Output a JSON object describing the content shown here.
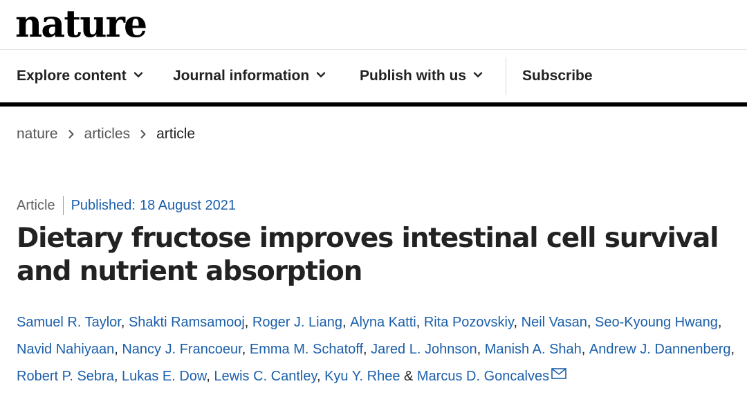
{
  "header": {
    "logo": "nature"
  },
  "nav": {
    "items": [
      {
        "label": "Explore content",
        "icon": "chevron-down-icon"
      },
      {
        "label": "Journal information",
        "icon": "chevron-down-icon"
      },
      {
        "label": "Publish with us",
        "icon": "chevron-down-icon"
      },
      {
        "label": "Subscribe"
      }
    ]
  },
  "breadcrumb": {
    "items": [
      "nature",
      "articles",
      "article"
    ]
  },
  "article": {
    "type": "Article",
    "published_label": "Published:",
    "published_date": "18 August 2021",
    "title": "Dietary fructose improves intestinal cell survival and nutrient absorption",
    "authors": [
      "Samuel R. Taylor",
      "Shakti Ramsamooj",
      "Roger J. Liang",
      "Alyna Katti",
      "Rita Pozovskiy",
      "Neil Vasan",
      "Seo-Kyoung Hwang",
      "Navid Nahiyaan",
      "Nancy J. Francoeur",
      "Emma M. Schatoff",
      "Jared L. Johnson",
      "Manish A. Shah",
      "Andrew J. Dannenberg",
      "Robert P. Sebra",
      "Lukas E. Dow",
      "Lewis C. Cantley",
      "Kyu Y. Rhee",
      "Marcus D. Goncalves"
    ],
    "author_separator": ", ",
    "last_separator": " & ",
    "corresponding_icon": "mail-icon"
  },
  "colors": {
    "link": "#1b5faa",
    "text": "#222222",
    "muted": "#626262",
    "nav_rule": "#000000"
  }
}
